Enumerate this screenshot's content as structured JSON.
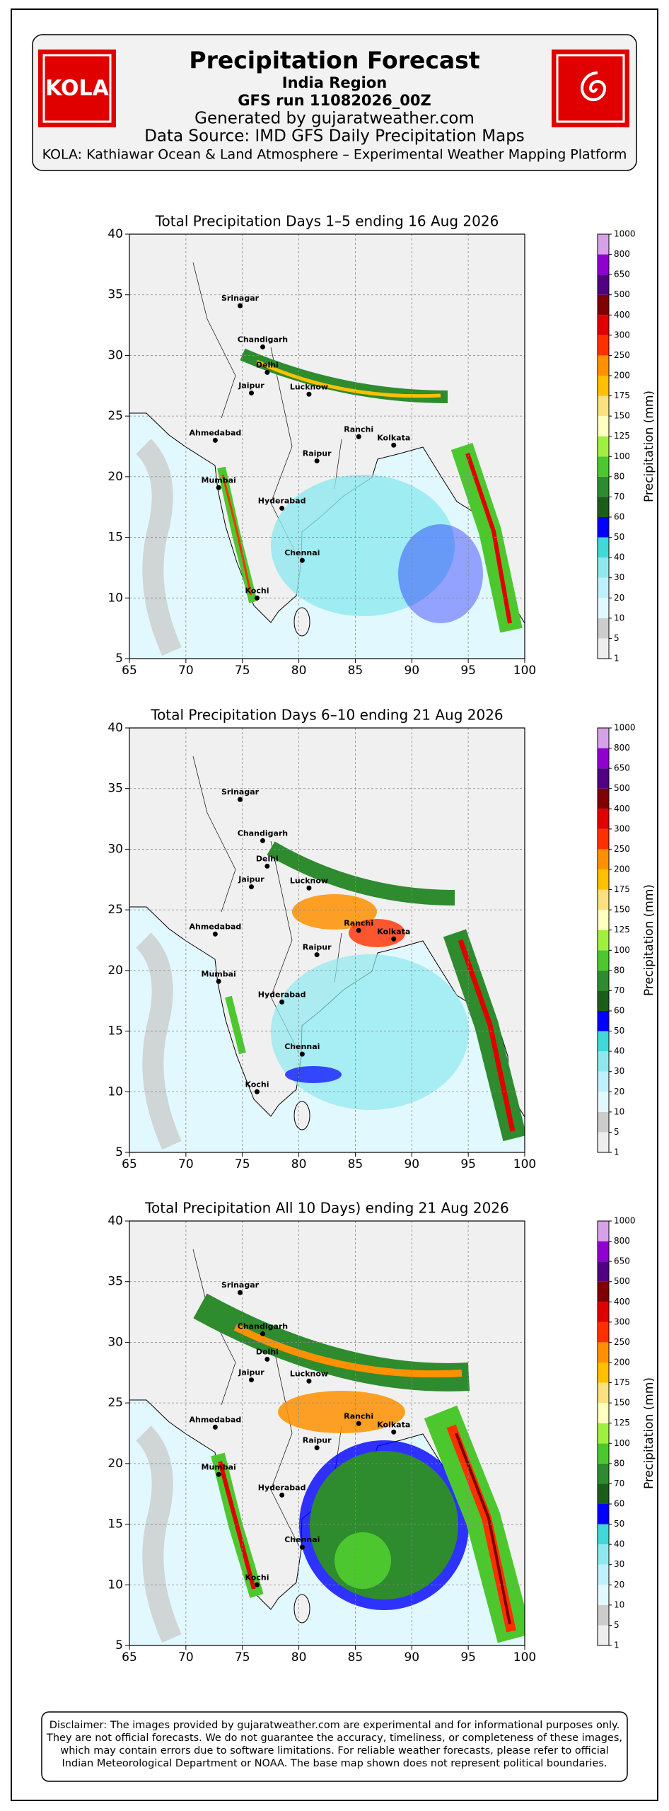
{
  "header": {
    "logo_left": "KOLA",
    "title": "Precipitation Forecast",
    "subtitle": "India Region",
    "run": "GFS run 11082026_00Z",
    "generated_by": "Generated by gujaratweather.com",
    "source": "Data Source: IMD GFS Daily Precipitation Maps",
    "platform": "KOLA: Kathiawar Ocean & Land Atmosphere – Experimental Weather Mapping Platform"
  },
  "maps": [
    {
      "title": "Total Precipitation Days 1–5 ending 16 Aug 2026",
      "xlim": [
        65,
        100
      ],
      "ylim": [
        5,
        40
      ],
      "xticks": [
        65,
        70,
        75,
        80,
        85,
        90,
        95,
        100
      ],
      "yticks": [
        5,
        10,
        15,
        20,
        25,
        30,
        35,
        40
      ],
      "grid": true,
      "cities": [
        {
          "name": "Srinagar",
          "lon": 74.8,
          "lat": 34.1
        },
        {
          "name": "Chandigarh",
          "lon": 76.8,
          "lat": 30.7
        },
        {
          "name": "Delhi",
          "lon": 77.2,
          "lat": 28.6
        },
        {
          "name": "Jaipur",
          "lon": 75.8,
          "lat": 26.9
        },
        {
          "name": "Lucknow",
          "lon": 80.9,
          "lat": 26.8
        },
        {
          "name": "Ahmedabad",
          "lon": 72.6,
          "lat": 23.0
        },
        {
          "name": "Ranchi",
          "lon": 85.3,
          "lat": 23.3
        },
        {
          "name": "Kolkata",
          "lon": 88.4,
          "lat": 22.6
        },
        {
          "name": "Raipur",
          "lon": 81.6,
          "lat": 21.3
        },
        {
          "name": "Mumbai",
          "lon": 72.9,
          "lat": 19.1
        },
        {
          "name": "Hyderabad",
          "lon": 78.5,
          "lat": 17.4
        },
        {
          "name": "Chennai",
          "lon": 80.3,
          "lat": 13.1
        },
        {
          "name": "Kochi",
          "lon": 76.3,
          "lat": 10.0
        }
      ]
    },
    {
      "title": "Total Precipitation Days 6–10 ending 21 Aug 2026",
      "xlim": [
        65,
        100
      ],
      "ylim": [
        5,
        40
      ],
      "xticks": [
        65,
        70,
        75,
        80,
        85,
        90,
        95,
        100
      ],
      "yticks": [
        5,
        10,
        15,
        20,
        25,
        30,
        35,
        40
      ],
      "grid": true,
      "cities": [
        {
          "name": "Srinagar",
          "lon": 74.8,
          "lat": 34.1
        },
        {
          "name": "Chandigarh",
          "lon": 76.8,
          "lat": 30.7
        },
        {
          "name": "Delhi",
          "lon": 77.2,
          "lat": 28.6
        },
        {
          "name": "Jaipur",
          "lon": 75.8,
          "lat": 26.9
        },
        {
          "name": "Lucknow",
          "lon": 80.9,
          "lat": 26.8
        },
        {
          "name": "Ahmedabad",
          "lon": 72.6,
          "lat": 23.0
        },
        {
          "name": "Ranchi",
          "lon": 85.3,
          "lat": 23.3
        },
        {
          "name": "Kolkata",
          "lon": 88.4,
          "lat": 22.6
        },
        {
          "name": "Raipur",
          "lon": 81.6,
          "lat": 21.3
        },
        {
          "name": "Mumbai",
          "lon": 72.9,
          "lat": 19.1
        },
        {
          "name": "Hyderabad",
          "lon": 78.5,
          "lat": 17.4
        },
        {
          "name": "Chennai",
          "lon": 80.3,
          "lat": 13.1
        },
        {
          "name": "Kochi",
          "lon": 76.3,
          "lat": 10.0
        }
      ]
    },
    {
      "title": "Total Precipitation All 10 Days) ending 21 Aug 2026",
      "xlim": [
        65,
        100
      ],
      "ylim": [
        5,
        40
      ],
      "xticks": [
        65,
        70,
        75,
        80,
        85,
        90,
        95,
        100
      ],
      "yticks": [
        5,
        10,
        15,
        20,
        25,
        30,
        35,
        40
      ],
      "grid": true,
      "cities": [
        {
          "name": "Srinagar",
          "lon": 74.8,
          "lat": 34.1
        },
        {
          "name": "Chandigarh",
          "lon": 76.8,
          "lat": 30.7
        },
        {
          "name": "Delhi",
          "lon": 77.2,
          "lat": 28.6
        },
        {
          "name": "Jaipur",
          "lon": 75.8,
          "lat": 26.9
        },
        {
          "name": "Lucknow",
          "lon": 80.9,
          "lat": 26.8
        },
        {
          "name": "Ahmedabad",
          "lon": 72.6,
          "lat": 23.0
        },
        {
          "name": "Ranchi",
          "lon": 85.3,
          "lat": 23.3
        },
        {
          "name": "Kolkata",
          "lon": 88.4,
          "lat": 22.6
        },
        {
          "name": "Raipur",
          "lon": 81.6,
          "lat": 21.3
        },
        {
          "name": "Mumbai",
          "lon": 72.9,
          "lat": 19.1
        },
        {
          "name": "Hyderabad",
          "lon": 78.5,
          "lat": 17.4
        },
        {
          "name": "Chennai",
          "lon": 80.3,
          "lat": 13.1
        },
        {
          "name": "Kochi",
          "lon": 76.3,
          "lat": 10.0
        }
      ]
    }
  ],
  "colorbar": {
    "label": "Precipitation (mm)",
    "levels": [
      1,
      5,
      10,
      20,
      30,
      40,
      50,
      60,
      70,
      80,
      100,
      125,
      150,
      175,
      200,
      250,
      300,
      400,
      500,
      650,
      800,
      1000
    ],
    "colors": [
      "#eeeeee",
      "#cccccc",
      "#e2f8ff",
      "#bff0ff",
      "#8fe8f0",
      "#40d8d8",
      "#0000ff",
      "#1a5e1a",
      "#2e8b2e",
      "#4cc82e",
      "#a0f040",
      "#ffffc0",
      "#ffe080",
      "#ffc000",
      "#ff9000",
      "#ff3000",
      "#e00000",
      "#800000",
      "#500080",
      "#9000d0",
      "#d8a0e8"
    ]
  },
  "disclaimer": [
    "Disclaimer: The images provided by gujaratweather.com are experimental and for informational purposes only.",
    "They are not official forecasts. We do not guarantee the accuracy, timeliness, or completeness of these images,",
    "which may contain errors due to software limitations. For reliable weather forecasts, please refer to official",
    "Indian Meteorological Department or NOAA. The base map shown does not represent political boundaries."
  ]
}
